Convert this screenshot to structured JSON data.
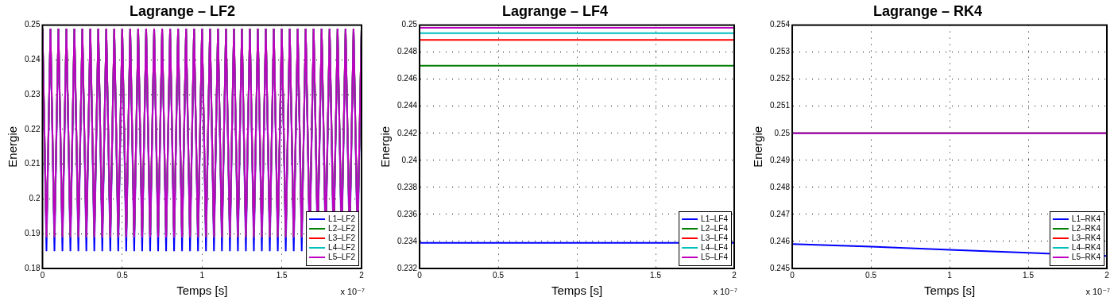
{
  "chart_data": [
    {
      "type": "line",
      "title": "Lagrange – LF2",
      "x_label": "Temps [s]",
      "y_label": "Energie",
      "annotation": "x 10⁻⁷",
      "x": [
        0,
        2.5e-09,
        5e-09,
        7.5e-09,
        1e-08,
        1.25e-08,
        1.5e-08,
        1.75e-08,
        2e-08,
        2.25e-08,
        2.5e-08,
        2.75e-08,
        3e-08,
        3.25e-08,
        3.5e-08,
        3.75e-08,
        4e-08,
        4.25e-08,
        4.5e-08,
        4.75e-08,
        5e-08,
        5.25e-08,
        5.5e-08,
        5.75e-08,
        6e-08,
        6.25e-08,
        6.5e-08,
        6.75e-08,
        7e-08,
        7.25e-08,
        7.5e-08,
        7.75e-08,
        8e-08,
        8.25e-08,
        8.5e-08,
        8.75e-08,
        9e-08,
        9.25e-08,
        9.5e-08,
        9.75e-08,
        1e-07,
        1.025e-07,
        1.05e-07,
        1.075e-07,
        1.1e-07,
        1.125e-07,
        1.15e-07,
        1.175e-07,
        1.2e-07,
        1.225e-07,
        1.25e-07,
        1.275e-07,
        1.3e-07,
        1.325e-07,
        1.35e-07,
        1.375e-07,
        1.4e-07,
        1.425e-07,
        1.45e-07,
        1.475e-07,
        1.5e-07,
        1.525e-07,
        1.55e-07,
        1.575e-07,
        1.6e-07,
        1.625e-07,
        1.65e-07,
        1.675e-07,
        1.7e-07,
        1.725e-07,
        1.75e-07,
        1.775e-07,
        1.8e-07,
        1.825e-07,
        1.85e-07,
        1.875e-07,
        1.9e-07,
        1.925e-07,
        1.95e-07,
        1.975e-07,
        2e-07
      ],
      "xlim": [
        0,
        2e-07
      ],
      "xticks": [
        0,
        {
          "value": 5e-08,
          "label": "0.5"
        },
        {
          "value": 1e-07,
          "label": "1"
        },
        {
          "value": 1.5e-07,
          "label": "1.5"
        },
        {
          "value": 2e-07,
          "label": "2"
        }
      ],
      "ylim": [
        0.18,
        0.25
      ],
      "yticks": [
        0.18,
        0.19,
        0.2,
        0.21,
        0.22,
        0.23,
        0.24,
        0.25
      ],
      "grid": true,
      "legend": "lower right",
      "series": [
        {
          "name": "L1–LF2",
          "color": "#0000ff",
          "values": [
            0.249,
            0.185,
            0.249,
            0.185,
            0.249,
            0.185,
            0.249,
            0.185,
            0.249,
            0.185,
            0.249,
            0.185,
            0.249,
            0.185,
            0.249,
            0.185,
            0.249,
            0.185,
            0.249,
            0.185,
            0.249,
            0.185,
            0.249,
            0.185,
            0.249,
            0.185,
            0.249,
            0.185,
            0.249,
            0.185,
            0.249,
            0.185,
            0.249,
            0.185,
            0.249,
            0.185,
            0.249,
            0.185,
            0.249,
            0.185,
            0.249,
            0.185,
            0.249,
            0.185,
            0.249,
            0.185,
            0.249,
            0.185,
            0.249,
            0.185,
            0.249,
            0.185,
            0.249,
            0.185,
            0.249,
            0.185,
            0.249,
            0.185,
            0.249,
            0.185,
            0.249,
            0.185,
            0.249,
            0.185,
            0.249,
            0.185,
            0.249,
            0.185,
            0.249,
            0.185,
            0.249,
            0.185,
            0.249,
            0.185,
            0.249,
            0.185,
            0.249,
            0.185,
            0.249,
            0.185,
            0.249
          ]
        },
        {
          "name": "L2–LF2",
          "color": "#008000",
          "values": [
            0.249,
            0.189,
            0.249,
            0.189,
            0.249,
            0.189,
            0.249,
            0.189,
            0.249,
            0.189,
            0.249,
            0.189,
            0.249,
            0.189,
            0.249,
            0.189,
            0.249,
            0.189,
            0.249,
            0.189,
            0.249,
            0.189,
            0.249,
            0.189,
            0.249,
            0.189,
            0.249,
            0.189,
            0.249,
            0.189,
            0.249,
            0.189,
            0.249,
            0.189,
            0.249,
            0.189,
            0.249,
            0.189,
            0.249,
            0.189,
            0.249,
            0.189,
            0.249,
            0.189,
            0.249,
            0.189,
            0.249,
            0.189,
            0.249,
            0.189,
            0.249,
            0.189,
            0.249,
            0.189,
            0.249,
            0.189,
            0.249,
            0.189,
            0.249,
            0.189,
            0.249,
            0.189,
            0.249,
            0.189,
            0.249,
            0.189,
            0.249,
            0.189,
            0.249,
            0.189,
            0.249,
            0.189,
            0.249,
            0.189,
            0.249,
            0.189,
            0.249,
            0.189,
            0.249,
            0.189,
            0.249
          ]
        },
        {
          "name": "L3–LF2",
          "color": "#ff0000",
          "values": [
            0.249,
            0.189,
            0.249,
            0.189,
            0.249,
            0.189,
            0.249,
            0.189,
            0.249,
            0.189,
            0.249,
            0.189,
            0.249,
            0.189,
            0.249,
            0.189,
            0.249,
            0.189,
            0.249,
            0.189,
            0.249,
            0.189,
            0.249,
            0.189,
            0.249,
            0.189,
            0.249,
            0.189,
            0.249,
            0.189,
            0.249,
            0.189,
            0.249,
            0.189,
            0.249,
            0.189,
            0.249,
            0.189,
            0.249,
            0.189,
            0.249,
            0.189,
            0.249,
            0.189,
            0.249,
            0.189,
            0.249,
            0.189,
            0.249,
            0.189,
            0.249,
            0.189,
            0.249,
            0.189,
            0.249,
            0.189,
            0.249,
            0.189,
            0.249,
            0.189,
            0.249,
            0.189,
            0.249,
            0.189,
            0.249,
            0.189,
            0.249,
            0.189,
            0.249,
            0.189,
            0.249,
            0.189,
            0.249,
            0.189,
            0.249,
            0.189,
            0.249,
            0.189,
            0.249,
            0.189,
            0.249
          ]
        },
        {
          "name": "L4–LF2",
          "color": "#00bfbf",
          "values": [
            0.249,
            0.189,
            0.249,
            0.189,
            0.249,
            0.189,
            0.249,
            0.189,
            0.249,
            0.189,
            0.249,
            0.189,
            0.249,
            0.189,
            0.249,
            0.189,
            0.249,
            0.189,
            0.249,
            0.189,
            0.249,
            0.189,
            0.249,
            0.189,
            0.249,
            0.189,
            0.249,
            0.189,
            0.249,
            0.189,
            0.249,
            0.189,
            0.249,
            0.189,
            0.249,
            0.189,
            0.249,
            0.189,
            0.249,
            0.189,
            0.249,
            0.189,
            0.249,
            0.189,
            0.249,
            0.189,
            0.249,
            0.189,
            0.249,
            0.189,
            0.249,
            0.189,
            0.249,
            0.189,
            0.249,
            0.189,
            0.249,
            0.189,
            0.249,
            0.189,
            0.249,
            0.189,
            0.249,
            0.189,
            0.249,
            0.189,
            0.249,
            0.189,
            0.249,
            0.189,
            0.249,
            0.189,
            0.249,
            0.189,
            0.249,
            0.189,
            0.249,
            0.189,
            0.249,
            0.189,
            0.249
          ]
        },
        {
          "name": "L5–LF2",
          "color": "#bf00bf",
          "values": [
            0.249,
            0.189,
            0.249,
            0.189,
            0.249,
            0.189,
            0.249,
            0.189,
            0.249,
            0.189,
            0.249,
            0.189,
            0.249,
            0.189,
            0.249,
            0.189,
            0.249,
            0.189,
            0.249,
            0.189,
            0.249,
            0.189,
            0.249,
            0.189,
            0.249,
            0.189,
            0.249,
            0.189,
            0.249,
            0.189,
            0.249,
            0.189,
            0.249,
            0.189,
            0.249,
            0.189,
            0.249,
            0.189,
            0.249,
            0.189,
            0.249,
            0.189,
            0.249,
            0.189,
            0.249,
            0.189,
            0.249,
            0.189,
            0.249,
            0.189,
            0.249,
            0.189,
            0.249,
            0.189,
            0.249,
            0.189,
            0.249,
            0.189,
            0.249,
            0.189,
            0.249,
            0.189,
            0.249,
            0.189,
            0.249,
            0.189,
            0.249,
            0.189,
            0.249,
            0.189,
            0.249,
            0.189,
            0.249,
            0.189,
            0.249,
            0.189,
            0.249,
            0.189,
            0.249,
            0.189,
            0.249
          ]
        }
      ]
    },
    {
      "type": "line",
      "title": "Lagrange – LF4",
      "x_label": "Temps [s]",
      "y_label": "Energie",
      "annotation": "x 10⁻⁷",
      "x": [
        0,
        5e-08,
        1e-07,
        1.5e-07,
        2e-07
      ],
      "xlim": [
        0,
        2e-07
      ],
      "xticks": [
        0,
        {
          "value": 5e-08,
          "label": "0.5"
        },
        {
          "value": 1e-07,
          "label": "1"
        },
        {
          "value": 1.5e-07,
          "label": "1.5"
        },
        {
          "value": 2e-07,
          "label": "2"
        }
      ],
      "ylim": [
        0.232,
        0.25
      ],
      "yticks": [
        0.232,
        0.234,
        0.236,
        0.238,
        0.24,
        0.242,
        0.244,
        0.246,
        0.248,
        0.25
      ],
      "grid": true,
      "legend": "lower right",
      "series": [
        {
          "name": "L1–LF4",
          "color": "#0000ff",
          "values": [
            0.2339,
            0.2339,
            0.2339,
            0.2339,
            0.2339
          ]
        },
        {
          "name": "L2–LF4",
          "color": "#008000",
          "values": [
            0.247,
            0.247,
            0.247,
            0.247,
            0.247
          ]
        },
        {
          "name": "L3–LF4",
          "color": "#ff0000",
          "values": [
            0.2489,
            0.2489,
            0.2489,
            0.2489,
            0.2489
          ]
        },
        {
          "name": "L4–LF4",
          "color": "#00bfbf",
          "values": [
            0.2494,
            0.2494,
            0.2494,
            0.2494,
            0.2494
          ]
        },
        {
          "name": "L5–LF4",
          "color": "#bf00bf",
          "values": [
            0.2498,
            0.2498,
            0.2498,
            0.2498,
            0.2498
          ]
        }
      ]
    },
    {
      "type": "line",
      "title": "Lagrange – RK4",
      "x_label": "Temps [s]",
      "y_label": "Energie",
      "annotation": "x 10⁻⁷",
      "x": [
        0,
        5e-08,
        1e-07,
        1.5e-07,
        2e-07
      ],
      "xlim": [
        0,
        2e-07
      ],
      "xticks": [
        0,
        {
          "value": 5e-08,
          "label": "0.5"
        },
        {
          "value": 1e-07,
          "label": "1"
        },
        {
          "value": 1.5e-07,
          "label": "1.5"
        },
        {
          "value": 2e-07,
          "label": "2"
        }
      ],
      "ylim": [
        0.245,
        0.254
      ],
      "yticks": [
        0.245,
        0.246,
        0.247,
        0.248,
        0.249,
        0.25,
        0.251,
        0.252,
        0.253,
        0.254
      ],
      "grid": true,
      "legend": "lower right",
      "series": [
        {
          "name": "L1–RK4",
          "color": "#0000ff",
          "values": [
            0.2459,
            0.24581,
            0.24569,
            0.24558,
            0.24546
          ]
        },
        {
          "name": "L2–RK4",
          "color": "#008000",
          "values": [
            0.25,
            0.25,
            0.25,
            0.25,
            0.25
          ]
        },
        {
          "name": "L3–RK4",
          "color": "#ff0000",
          "values": [
            0.25,
            0.25,
            0.25,
            0.25,
            0.25
          ]
        },
        {
          "name": "L4–RK4",
          "color": "#00bfbf",
          "values": [
            0.25,
            0.25,
            0.25,
            0.25,
            0.25
          ]
        },
        {
          "name": "L5–RK4",
          "color": "#bf00bf",
          "values": [
            0.25,
            0.25,
            0.25,
            0.25,
            0.25
          ]
        }
      ]
    }
  ]
}
